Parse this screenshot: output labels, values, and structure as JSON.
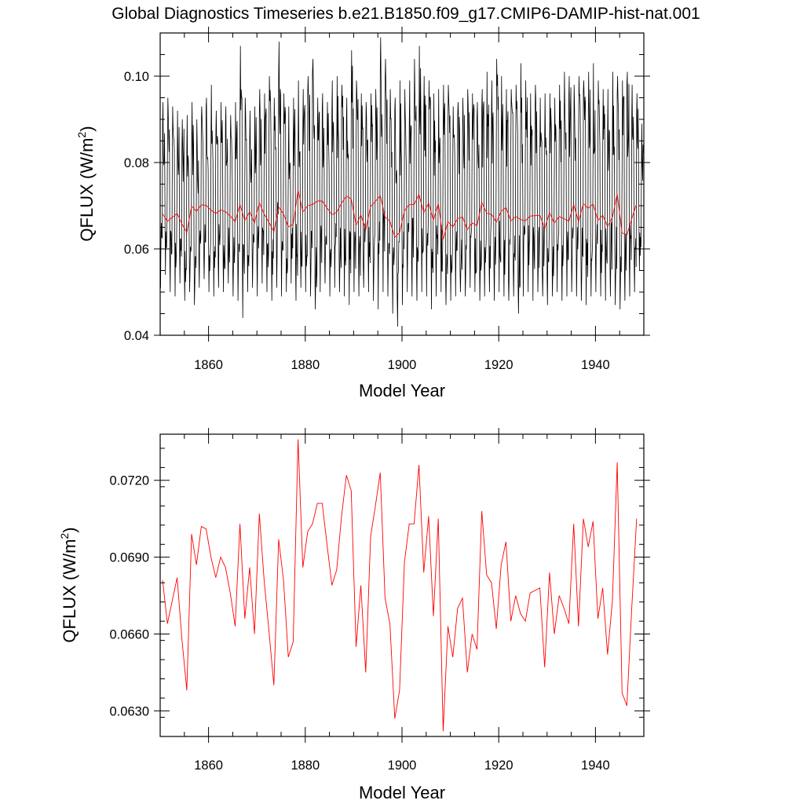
{
  "title": "Global Diagnostics Timeseries b.e21.B1850.f09_g17.CMIP6-DAMIP-hist-nat.001",
  "chart_data": [
    {
      "type": "line",
      "xlabel": "Model Year",
      "ylabel_text": "QFLUX (W/m",
      "ylabel_sup": "2",
      "ylabel_close": ")",
      "xlim": [
        1850,
        1950
      ],
      "ylim": [
        0.04,
        0.11
      ],
      "x_ticks": [
        "1860",
        "1880",
        "1900",
        "1920",
        "1940"
      ],
      "y_ticks": [
        "0.04",
        "0.06",
        "0.08",
        "0.10"
      ],
      "grid": false,
      "series": [
        {
          "color": "#000000",
          "description_free": true,
          "x_start": 1850,
          "points_per_year": 12,
          "annual_max": [
            0.094,
            0.095,
            0.093,
            0.092,
            0.09,
            0.091,
            0.094,
            0.09,
            0.093,
            0.095,
            0.098,
            0.092,
            0.094,
            0.093,
            0.091,
            0.094,
            0.107,
            0.095,
            0.092,
            0.093,
            0.097,
            0.096,
            0.1,
            0.095,
            0.108,
            0.096,
            0.093,
            0.095,
            0.099,
            0.097,
            0.1,
            0.104,
            0.095,
            0.096,
            0.094,
            0.099,
            0.1,
            0.098,
            0.095,
            0.106,
            0.099,
            0.096,
            0.094,
            0.096,
            0.097,
            0.109,
            0.104,
            0.097,
            0.095,
            0.099,
            0.097,
            0.099,
            0.104,
            0.107,
            0.1,
            0.099,
            0.096,
            0.097,
            0.098,
            0.098,
            0.093,
            0.094,
            0.095,
            0.097,
            0.096,
            0.094,
            0.097,
            0.101,
            0.099,
            0.104,
            0.1,
            0.097,
            0.097,
            0.098,
            0.103,
            0.099,
            0.096,
            0.098,
            0.095,
            0.096,
            0.096,
            0.095,
            0.098,
            0.101,
            0.1,
            0.098,
            0.1,
            0.099,
            0.101,
            0.103,
            0.099,
            0.097,
            0.097,
            0.101,
            0.1,
            0.099,
            0.101,
            0.098,
            0.096,
            0.089
          ],
          "annual_min": [
            0.051,
            0.054,
            0.05,
            0.049,
            0.052,
            0.048,
            0.05,
            0.047,
            0.051,
            0.053,
            0.05,
            0.049,
            0.051,
            0.05,
            0.052,
            0.049,
            0.048,
            0.044,
            0.05,
            0.051,
            0.049,
            0.052,
            0.05,
            0.048,
            0.051,
            0.049,
            0.05,
            0.052,
            0.048,
            0.051,
            0.05,
            0.049,
            0.046,
            0.05,
            0.052,
            0.049,
            0.051,
            0.05,
            0.049,
            0.047,
            0.05,
            0.049,
            0.051,
            0.05,
            0.048,
            0.046,
            0.05,
            0.049,
            0.045,
            0.042,
            0.047,
            0.05,
            0.049,
            0.048,
            0.05,
            0.049,
            0.046,
            0.049,
            0.05,
            0.047,
            0.048,
            0.049,
            0.05,
            0.049,
            0.051,
            0.05,
            0.048,
            0.049,
            0.05,
            0.048,
            0.05,
            0.049,
            0.048,
            0.049,
            0.045,
            0.049,
            0.05,
            0.048,
            0.05,
            0.049,
            0.047,
            0.049,
            0.05,
            0.048,
            0.049,
            0.05,
            0.049,
            0.048,
            0.047,
            0.049,
            0.05,
            0.049,
            0.048,
            0.049,
            0.047,
            0.046,
            0.048,
            0.049,
            0.05,
            0.055
          ]
        },
        {
          "color": "#ff0000",
          "x_start": 1850,
          "values": [
            0.0681,
            0.0664,
            0.0673,
            0.0682,
            0.0658,
            0.0638,
            0.0699,
            0.0687,
            0.0702,
            0.0701,
            0.069,
            0.0682,
            0.069,
            0.0686,
            0.0676,
            0.0663,
            0.0703,
            0.0666,
            0.0686,
            0.066,
            0.0707,
            0.0681,
            0.0661,
            0.064,
            0.0697,
            0.0681,
            0.0651,
            0.0657,
            0.0736,
            0.0686,
            0.07,
            0.0703,
            0.0711,
            0.0711,
            0.0695,
            0.0679,
            0.0685,
            0.0706,
            0.0722,
            0.0716,
            0.0655,
            0.0679,
            0.0645,
            0.0698,
            0.071,
            0.0723,
            0.0674,
            0.0664,
            0.0627,
            0.0638,
            0.0688,
            0.0703,
            0.0703,
            0.0726,
            0.0684,
            0.0706,
            0.0667,
            0.0705,
            0.0622,
            0.0663,
            0.0651,
            0.067,
            0.0674,
            0.0645,
            0.066,
            0.0654,
            0.0708,
            0.0683,
            0.068,
            0.0662,
            0.0687,
            0.0696,
            0.0665,
            0.0675,
            0.0668,
            0.0665,
            0.0676,
            0.0677,
            0.0678,
            0.0647,
            0.0684,
            0.066,
            0.0675,
            0.067,
            0.0664,
            0.0703,
            0.0663,
            0.0705,
            0.0694,
            0.0704,
            0.0666,
            0.0678,
            0.0652,
            0.0673,
            0.0727,
            0.0637,
            0.0632,
            0.067,
            0.0705
          ]
        }
      ]
    },
    {
      "type": "line",
      "xlabel": "Model Year",
      "ylabel_text": "QFLUX (W/m",
      "ylabel_sup": "2",
      "ylabel_close": ")",
      "xlim": [
        1850,
        1950
      ],
      "ylim": [
        0.062,
        0.0738
      ],
      "x_ticks": [
        "1860",
        "1880",
        "1900",
        "1920",
        "1940"
      ],
      "y_ticks": [
        "0.0630",
        "0.0660",
        "0.0690",
        "0.0720"
      ],
      "grid": false,
      "series": [
        {
          "color": "#ff0000",
          "x_start": 1850,
          "values": [
            0.0681,
            0.0664,
            0.0673,
            0.0682,
            0.0658,
            0.0638,
            0.0699,
            0.0687,
            0.0702,
            0.0701,
            0.069,
            0.0682,
            0.069,
            0.0686,
            0.0676,
            0.0663,
            0.0703,
            0.0666,
            0.0686,
            0.066,
            0.0707,
            0.0681,
            0.0661,
            0.064,
            0.0697,
            0.0681,
            0.0651,
            0.0657,
            0.0736,
            0.0686,
            0.07,
            0.0703,
            0.0711,
            0.0711,
            0.0695,
            0.0679,
            0.0685,
            0.0706,
            0.0722,
            0.0716,
            0.0655,
            0.0679,
            0.0645,
            0.0698,
            0.071,
            0.0723,
            0.0674,
            0.0664,
            0.0627,
            0.0638,
            0.0688,
            0.0703,
            0.0703,
            0.0726,
            0.0684,
            0.0706,
            0.0667,
            0.0705,
            0.0622,
            0.0663,
            0.0651,
            0.067,
            0.0674,
            0.0645,
            0.066,
            0.0654,
            0.0708,
            0.0683,
            0.068,
            0.0662,
            0.0687,
            0.0696,
            0.0665,
            0.0675,
            0.0668,
            0.0665,
            0.0676,
            0.0677,
            0.0678,
            0.0647,
            0.0684,
            0.066,
            0.0675,
            0.067,
            0.0664,
            0.0703,
            0.0663,
            0.0705,
            0.0694,
            0.0704,
            0.0666,
            0.0678,
            0.0652,
            0.0673,
            0.0727,
            0.0637,
            0.0632,
            0.067,
            0.0705
          ]
        }
      ]
    }
  ]
}
